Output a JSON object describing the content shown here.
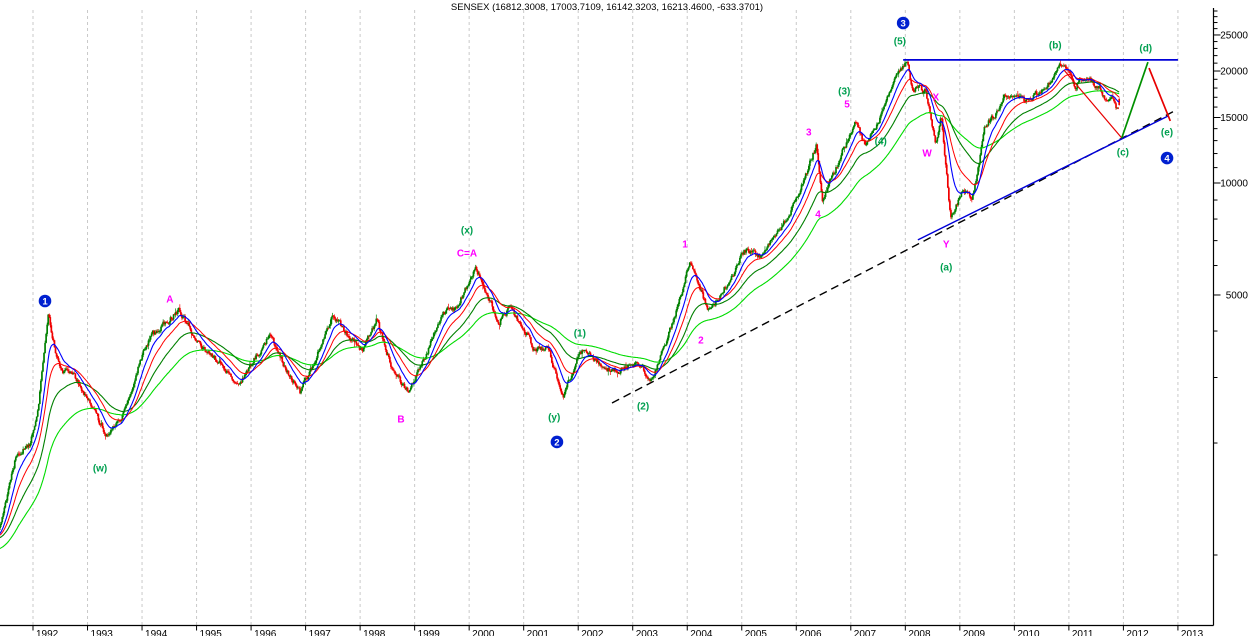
{
  "app": {
    "type": "charting-application",
    "background": "#FFFFFF"
  },
  "chart_data": {
    "type": "candlestick",
    "title": "SENSEX (16812.3008, 17003.7109, 16142.3203, 16213.4600, -633.3701)",
    "symbol": "SENSEX",
    "period": "weekly",
    "log_scale": true,
    "legend_position": "none",
    "grid": {
      "vertical_dashed_per_year": true,
      "horizontal": false,
      "color": "#C9C9C9"
    },
    "last_bar": {
      "open": 16812.3008,
      "high": 17003.7109,
      "low": 16142.3203,
      "close": 16213.46,
      "change": -633.3701
    },
    "x_axis": {
      "tick_years": [
        "1992",
        "1993",
        "1994",
        "1995",
        "1996",
        "1997",
        "1998",
        "1999",
        "2000",
        "2001",
        "2002",
        "2003",
        "2004",
        "2005",
        "2006",
        "2007",
        "2008",
        "2009",
        "2010",
        "2011",
        "2012",
        "2013"
      ],
      "range_years": [
        1991.39,
        2013.28
      ]
    },
    "y_axis": {
      "scale": "log",
      "major_ticks": [
        5000,
        10000,
        15000,
        20000,
        25000
      ],
      "labels": [
        "5000",
        "10000",
        "15000",
        "20000",
        "25000"
      ],
      "minor_tick_step": 1000,
      "minor_tick_range": [
        1000,
        29000
      ],
      "price_range_visible": [
        650,
        29500
      ]
    },
    "candles": {
      "up_color": "#008000",
      "down_color": "#F00000",
      "note": "weekly OHLC bars 1991-07 through 2011-12, generated from price_path_anchors"
    },
    "price_path_anchors": [
      [
        1989.5,
        720
      ],
      [
        1990.3,
        1050
      ],
      [
        1990.75,
        1370
      ],
      [
        1991.05,
        1000
      ],
      [
        1991.4,
        1190
      ],
      [
        1991.7,
        1880
      ],
      [
        1991.95,
        1957
      ],
      [
        1992.1,
        2550
      ],
      [
        1992.28,
        4400
      ],
      [
        1992.5,
        3100
      ],
      [
        1992.7,
        3150
      ],
      [
        1993.0,
        2620
      ],
      [
        1993.37,
        2080
      ],
      [
        1993.7,
        2460
      ],
      [
        1994.0,
        3450
      ],
      [
        1994.2,
        3920
      ],
      [
        1994.68,
        4550
      ],
      [
        1995.1,
        3560
      ],
      [
        1995.4,
        3320
      ],
      [
        1995.75,
        2860
      ],
      [
        1996.35,
        3900
      ],
      [
        1996.6,
        3250
      ],
      [
        1996.9,
        2730
      ],
      [
        1997.2,
        3400
      ],
      [
        1997.5,
        4450
      ],
      [
        1997.8,
        3850
      ],
      [
        1998.05,
        3550
      ],
      [
        1998.3,
        4280
      ],
      [
        1998.6,
        3150
      ],
      [
        1998.88,
        2760
      ],
      [
        1999.2,
        3400
      ],
      [
        1999.4,
        4100
      ],
      [
        1999.6,
        4650
      ],
      [
        1999.75,
        4560
      ],
      [
        2000.12,
        5950
      ],
      [
        2000.35,
        4870
      ],
      [
        2000.55,
        4250
      ],
      [
        2000.75,
        4640
      ],
      [
        2001.05,
        3940
      ],
      [
        2001.2,
        3560
      ],
      [
        2001.45,
        3640
      ],
      [
        2001.72,
        2620
      ],
      [
        2001.95,
        3300
      ],
      [
        2002.1,
        3540
      ],
      [
        2002.45,
        3180
      ],
      [
        2002.75,
        3130
      ],
      [
        2003.05,
        3310
      ],
      [
        2003.35,
        2950
      ],
      [
        2003.65,
        3860
      ],
      [
        2003.95,
        5300
      ],
      [
        2004.05,
        6250
      ],
      [
        2004.4,
        4480
      ],
      [
        2004.85,
        5700
      ],
      [
        2005.05,
        6600
      ],
      [
        2005.35,
        6350
      ],
      [
        2005.85,
        8150
      ],
      [
        2006.05,
        9400
      ],
      [
        2006.37,
        12650
      ],
      [
        2006.48,
        8950
      ],
      [
        2006.85,
        12200
      ],
      [
        2007.1,
        14700
      ],
      [
        2007.27,
        12480
      ],
      [
        2007.6,
        15600
      ],
      [
        2007.78,
        19100
      ],
      [
        2007.92,
        19900
      ],
      [
        2008.04,
        21100
      ],
      [
        2008.12,
        17800
      ],
      [
        2008.25,
        18050
      ],
      [
        2008.38,
        17600
      ],
      [
        2008.56,
        12600
      ],
      [
        2008.66,
        15350
      ],
      [
        2008.83,
        7950
      ],
      [
        2009.05,
        9650
      ],
      [
        2009.22,
        8950
      ],
      [
        2009.35,
        11100
      ],
      [
        2009.45,
        14350
      ],
      [
        2009.65,
        15100
      ],
      [
        2009.82,
        17150
      ],
      [
        2010.05,
        17450
      ],
      [
        2010.2,
        16450
      ],
      [
        2010.5,
        17850
      ],
      [
        2010.7,
        18800
      ],
      [
        2010.88,
        21050
      ],
      [
        2011.12,
        18150
      ],
      [
        2011.28,
        19400
      ],
      [
        2011.5,
        18400
      ],
      [
        2011.68,
        16900
      ],
      [
        2011.78,
        17250
      ],
      [
        2011.88,
        15900
      ],
      [
        2011.94,
        16213
      ]
    ],
    "moving_averages": [
      {
        "name": "ema-104-week",
        "period": 104,
        "color": "#00DC00",
        "width": 1.1
      },
      {
        "name": "ema-52-week",
        "period": 52,
        "color": "#008000",
        "width": 1.1
      },
      {
        "name": "ema-26-week",
        "period": 26,
        "color": "#FF0000",
        "width": 1.0
      },
      {
        "name": "ema-13-week",
        "period": 13,
        "color": "#0000FF",
        "width": 1.1
      }
    ],
    "trendlines": [
      {
        "name": "long-term-support-dashed",
        "color": "#000000",
        "dash": "8 5",
        "width": 1.4,
        "from": [
          2002.62,
          2563
        ],
        "to": [
          2012.97,
          15710
        ],
        "under_price": true
      },
      {
        "name": "post-2008-support-blue",
        "color": "#0000D8",
        "dash": "",
        "width": 1.4,
        "from": [
          2008.23,
          7030
        ],
        "to": [
          2012.82,
          15140
        ]
      },
      {
        "name": "top-resistance-blue",
        "color": "#0000D8",
        "dash": "",
        "width": 1.8,
        "from": [
          2007.96,
          21430
        ],
        "to": [
          2013.0,
          21430
        ]
      },
      {
        "name": "projection-decline-to-c",
        "color": "#E80000",
        "dash": "",
        "width": 1.2,
        "from": [
          2010.91,
          20130
        ],
        "to": [
          2011.97,
          13210
        ]
      },
      {
        "name": "projection-advance-to-d",
        "color": "#009000",
        "dash": "",
        "width": 1.7,
        "from": [
          2011.97,
          13210
        ],
        "to": [
          2012.45,
          21135
        ]
      },
      {
        "name": "projection-decline-to-e",
        "color": "#E80000",
        "dash": "",
        "width": 1.7,
        "from": [
          2012.47,
          20370
        ],
        "to": [
          2012.86,
          14680
        ]
      }
    ],
    "wave_labels": [
      {
        "text": "A",
        "color": "#FF00FF",
        "year": 1994.51,
        "price": 4877
      },
      {
        "text": "B",
        "color": "#FF00FF",
        "year": 1998.75,
        "price": 2321
      },
      {
        "text": "C=A",
        "color": "#FF00FF",
        "year": 1999.96,
        "price": 6482
      },
      {
        "text": "1",
        "color": "#FF00FF",
        "year": 2003.96,
        "price": 6853
      },
      {
        "text": "2",
        "color": "#FF00FF",
        "year": 2004.25,
        "price": 3784
      },
      {
        "text": "3",
        "color": "#FF00FF",
        "year": 2006.23,
        "price": 13708
      },
      {
        "text": "4",
        "color": "#FF00FF",
        "year": 2006.4,
        "price": 8255
      },
      {
        "text": "5",
        "color": "#FF00FF",
        "year": 2006.93,
        "price": 16310
      },
      {
        "text": "W",
        "color": "#FF00FF",
        "year": 2008.4,
        "price": 12040
      },
      {
        "text": "X",
        "color": "#FF00FF",
        "year": 2008.56,
        "price": 17030
      },
      {
        "text": "Y",
        "color": "#FF00FF",
        "year": 2008.75,
        "price": 6853
      },
      {
        "text": "(w)",
        "color": "#00A050",
        "year": 1993.23,
        "price": 1714
      },
      {
        "text": "(x)",
        "color": "#00A050",
        "year": 1999.96,
        "price": 7477
      },
      {
        "text": "(y)",
        "color": "#00A050",
        "year": 2001.56,
        "price": 2350
      },
      {
        "text": "(1)",
        "color": "#00A050",
        "year": 2002.03,
        "price": 3951
      },
      {
        "text": "(2)",
        "color": "#00A050",
        "year": 2003.19,
        "price": 2515
      },
      {
        "text": "(3)",
        "color": "#00A050",
        "year": 2006.88,
        "price": 17670
      },
      {
        "text": "(4)",
        "color": "#00A050",
        "year": 2007.55,
        "price": 12970
      },
      {
        "text": "(5)",
        "color": "#00A050",
        "year": 2007.9,
        "price": 24080
      },
      {
        "text": "(a)",
        "color": "#00A050",
        "year": 2008.75,
        "price": 5945
      },
      {
        "text": "(b)",
        "color": "#00A050",
        "year": 2010.75,
        "price": 23500
      },
      {
        "text": "(c)",
        "color": "#00A050",
        "year": 2011.99,
        "price": 12115
      },
      {
        "text": "(d)",
        "color": "#00A050",
        "year": 2012.41,
        "price": 23070
      },
      {
        "text": "(e)",
        "color": "#00A050",
        "year": 2012.8,
        "price": 13710
      }
    ],
    "circled_wave_numbers": [
      {
        "n": "1",
        "year": 1992.22,
        "price": 4817
      },
      {
        "n": "2",
        "year": 2001.61,
        "price": 2013
      },
      {
        "n": "3",
        "year": 2007.96,
        "price": 26920
      },
      {
        "n": "4",
        "year": 2012.8,
        "price": 11672
      }
    ],
    "colors": {
      "axis": "#000000",
      "grid": "#C9C9C9",
      "label_magenta": "#FF00FF",
      "label_green": "#00A050",
      "circle_blue": "#0020D0",
      "circle_text": "#FFFFFF",
      "title": "#000000"
    }
  }
}
